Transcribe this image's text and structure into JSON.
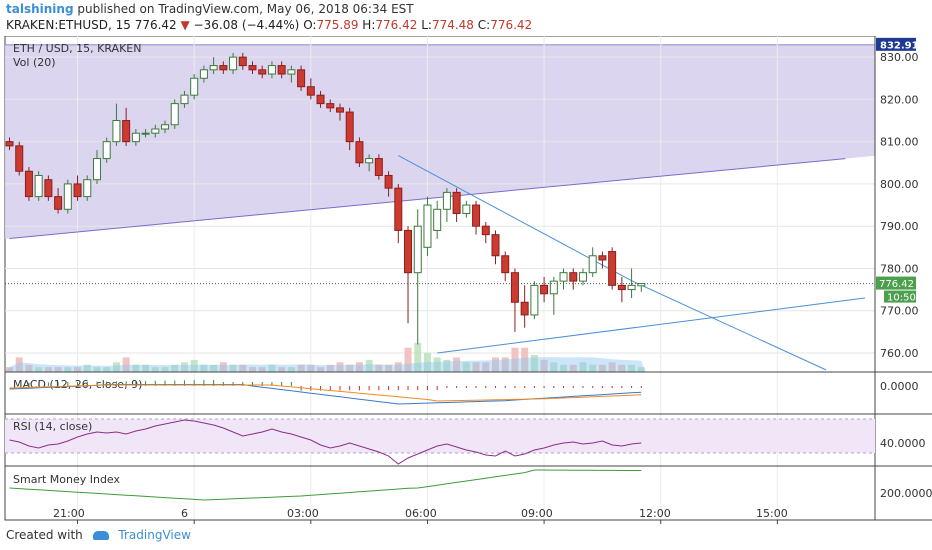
{
  "header": {
    "author": "talshining",
    "published": "published on TradingView.com, May 06, 2018 06:34 EST",
    "symbol": "KRAKEN:ETHUSD, 15",
    "last": "776.42",
    "change_arrow": "▼",
    "change": "−36.08 (−4.44%)",
    "o_label": "O:",
    "o": "775.89",
    "h_label": "H:",
    "h": "776.42",
    "l_label": "L:",
    "l": "774.48",
    "c_label": "C:",
    "c": "776.42"
  },
  "footer": {
    "created": "Created with",
    "brand": "TradingView"
  },
  "chart_data": {
    "type": "candlestick",
    "title": "ETH / USD, 15, KRAKEN",
    "volume_label": "Vol (20)",
    "y_ticks": [
      "830.00",
      "820.00",
      "810.00",
      "800.00",
      "790.00",
      "780.00",
      "770.00",
      "760.00"
    ],
    "y_tick_values": [
      830,
      820,
      810,
      800,
      790,
      780,
      770,
      760
    ],
    "ylim": [
      755.5,
      835
    ],
    "price_tags": {
      "top": "832.91",
      "last": "776.42",
      "countdown": "10:50"
    },
    "price_tag_values": {
      "top": 832.91,
      "last": 776.42
    },
    "x_ticks": [
      "21:00",
      "6",
      "03:00",
      "06:00",
      "09:00",
      "12:00",
      "15:00"
    ],
    "x_tick_bars": [
      7,
      19,
      31,
      43,
      55,
      67,
      79
    ],
    "candles": [
      {
        "o": 810,
        "h": 811,
        "l": 808,
        "c": 809
      },
      {
        "o": 809,
        "h": 810,
        "l": 802,
        "c": 803
      },
      {
        "o": 803,
        "h": 804,
        "l": 796,
        "c": 797
      },
      {
        "o": 797,
        "h": 803,
        "l": 796,
        "c": 802
      },
      {
        "o": 801,
        "h": 802,
        "l": 796,
        "c": 797
      },
      {
        "o": 797,
        "h": 799,
        "l": 793,
        "c": 794
      },
      {
        "o": 794,
        "h": 801,
        "l": 793,
        "c": 800
      },
      {
        "o": 800,
        "h": 802,
        "l": 796,
        "c": 797
      },
      {
        "o": 797,
        "h": 802,
        "l": 796,
        "c": 801
      },
      {
        "o": 801,
        "h": 808,
        "l": 800,
        "c": 806
      },
      {
        "o": 806,
        "h": 811,
        "l": 805,
        "c": 810
      },
      {
        "o": 810,
        "h": 819,
        "l": 809,
        "c": 815
      },
      {
        "o": 815,
        "h": 818,
        "l": 809,
        "c": 810
      },
      {
        "o": 810,
        "h": 813,
        "l": 809,
        "c": 812
      },
      {
        "o": 812,
        "h": 813,
        "l": 811,
        "c": 812
      },
      {
        "o": 812,
        "h": 814,
        "l": 811,
        "c": 813
      },
      {
        "o": 813,
        "h": 815,
        "l": 812,
        "c": 814
      },
      {
        "o": 814,
        "h": 820,
        "l": 813,
        "c": 819
      },
      {
        "o": 819,
        "h": 822,
        "l": 818,
        "c": 821
      },
      {
        "o": 821,
        "h": 826,
        "l": 820,
        "c": 825
      },
      {
        "o": 825,
        "h": 828,
        "l": 824,
        "c": 827
      },
      {
        "o": 827,
        "h": 830,
        "l": 826,
        "c": 828
      },
      {
        "o": 828,
        "h": 829,
        "l": 826,
        "c": 827
      },
      {
        "o": 827,
        "h": 831,
        "l": 826,
        "c": 830
      },
      {
        "o": 830,
        "h": 831,
        "l": 827,
        "c": 828
      },
      {
        "o": 828,
        "h": 829,
        "l": 826,
        "c": 827
      },
      {
        "o": 827,
        "h": 828,
        "l": 825,
        "c": 826
      },
      {
        "o": 826,
        "h": 829,
        "l": 825,
        "c": 828
      },
      {
        "o": 828,
        "h": 829,
        "l": 825,
        "c": 826
      },
      {
        "o": 826,
        "h": 828,
        "l": 824,
        "c": 827
      },
      {
        "o": 827,
        "h": 828,
        "l": 822,
        "c": 823
      },
      {
        "o": 823,
        "h": 825,
        "l": 820,
        "c": 821
      },
      {
        "o": 821,
        "h": 822,
        "l": 818,
        "c": 819
      },
      {
        "o": 819,
        "h": 820,
        "l": 817,
        "c": 818
      },
      {
        "o": 818,
        "h": 819,
        "l": 815,
        "c": 817
      },
      {
        "o": 817,
        "h": 818,
        "l": 808,
        "c": 810
      },
      {
        "o": 810,
        "h": 811,
        "l": 804,
        "c": 805
      },
      {
        "o": 805,
        "h": 807,
        "l": 803,
        "c": 806
      },
      {
        "o": 806,
        "h": 807,
        "l": 801,
        "c": 802
      },
      {
        "o": 802,
        "h": 803,
        "l": 797,
        "c": 799
      },
      {
        "o": 799,
        "h": 800,
        "l": 786,
        "c": 789
      },
      {
        "o": 789,
        "h": 790,
        "l": 767,
        "c": 779
      },
      {
        "o": 779,
        "h": 794,
        "l": 762,
        "c": 790
      },
      {
        "o": 785,
        "h": 797,
        "l": 783,
        "c": 795
      },
      {
        "o": 789,
        "h": 796,
        "l": 787,
        "c": 794
      },
      {
        "o": 794,
        "h": 799,
        "l": 791,
        "c": 798
      },
      {
        "o": 798,
        "h": 799,
        "l": 791,
        "c": 793
      },
      {
        "o": 793,
        "h": 796,
        "l": 792,
        "c": 795
      },
      {
        "o": 795,
        "h": 796,
        "l": 788,
        "c": 790
      },
      {
        "o": 790,
        "h": 791,
        "l": 786,
        "c": 788
      },
      {
        "o": 788,
        "h": 789,
        "l": 781,
        "c": 783
      },
      {
        "o": 783,
        "h": 784,
        "l": 777,
        "c": 779
      },
      {
        "o": 779,
        "h": 780,
        "l": 765,
        "c": 772
      },
      {
        "o": 772,
        "h": 776,
        "l": 766,
        "c": 769
      },
      {
        "o": 769,
        "h": 777,
        "l": 768,
        "c": 776
      },
      {
        "o": 776,
        "h": 778,
        "l": 772,
        "c": 774
      },
      {
        "o": 774,
        "h": 778,
        "l": 769,
        "c": 777
      },
      {
        "o": 777,
        "h": 780,
        "l": 775,
        "c": 779
      },
      {
        "o": 779,
        "h": 780,
        "l": 775,
        "c": 777
      },
      {
        "o": 777,
        "h": 780,
        "l": 776,
        "c": 779
      },
      {
        "o": 779,
        "h": 785,
        "l": 778,
        "c": 783
      },
      {
        "o": 783,
        "h": 784,
        "l": 780,
        "c": 782
      },
      {
        "o": 784,
        "h": 785,
        "l": 775,
        "c": 776
      },
      {
        "o": 776,
        "h": 778,
        "l": 772,
        "c": 775
      },
      {
        "o": 775,
        "h": 780,
        "l": 773,
        "c": 776
      },
      {
        "o": 775.89,
        "h": 776.42,
        "l": 774.48,
        "c": 776.42
      }
    ],
    "volume": [
      2,
      6,
      3,
      2,
      2,
      2,
      2,
      2,
      3,
      2,
      2,
      4,
      6,
      3,
      3,
      2,
      2,
      3,
      4,
      5,
      3,
      3,
      4,
      3,
      3,
      2,
      2,
      3,
      2,
      2,
      3,
      3,
      2,
      3,
      4,
      3,
      4,
      5,
      3,
      3,
      4,
      10,
      12,
      8,
      6,
      5,
      6,
      4,
      4,
      4,
      6,
      6,
      10,
      10,
      7,
      5,
      4,
      3,
      3,
      4,
      3,
      3,
      4,
      3,
      3,
      2
    ],
    "trendlines": [
      {
        "from": [
          0,
          787.1
        ],
        "to": [
          86,
          806
        ]
      },
      {
        "from": [
          40,
          806.7
        ],
        "to": [
          64,
          777.1
        ]
      },
      {
        "from": [
          44,
          760
        ],
        "to": [
          88,
          773
        ]
      },
      {
        "from": [
          64,
          777.1
        ],
        "to": [
          84,
          756
        ]
      }
    ],
    "indicators": [
      {
        "name": "MACD (12, 26, close, 9)",
        "tick": "0.0000"
      },
      {
        "name": "RSI (14, close)",
        "tick": "40.0000"
      },
      {
        "name": "Smart Money Index",
        "tick": "200.0000"
      }
    ]
  }
}
